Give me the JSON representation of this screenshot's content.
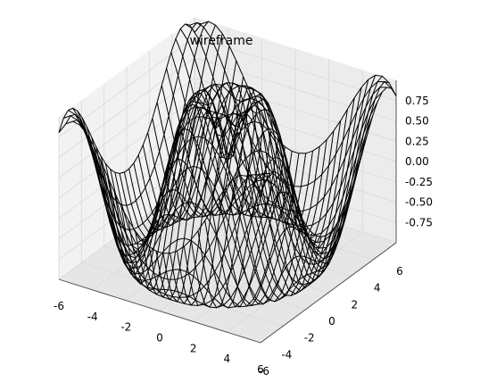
{
  "chart_data": {
    "type": "surface-wireframe",
    "title": "wireframe",
    "function": "sin(sqrt(x^2 + y^2))",
    "x_range": [
      -6,
      6
    ],
    "y_range": [
      -6,
      6
    ],
    "z_range": [
      -1,
      1
    ],
    "grid_samples": 30,
    "x_ticks": [
      "-6",
      "-4",
      "-2",
      "0",
      "2",
      "4",
      "6"
    ],
    "y_ticks": [
      "-6",
      "-4",
      "-2",
      "0",
      "2",
      "4",
      "6"
    ],
    "z_ticks": [
      "-0.75",
      "-0.50",
      "-0.25",
      "0.00",
      "0.25",
      "0.50",
      "0.75"
    ],
    "grid": true,
    "line_color": "#000000",
    "pane_color": "#f2f2f2",
    "grid_color": "#d9d9d9"
  }
}
